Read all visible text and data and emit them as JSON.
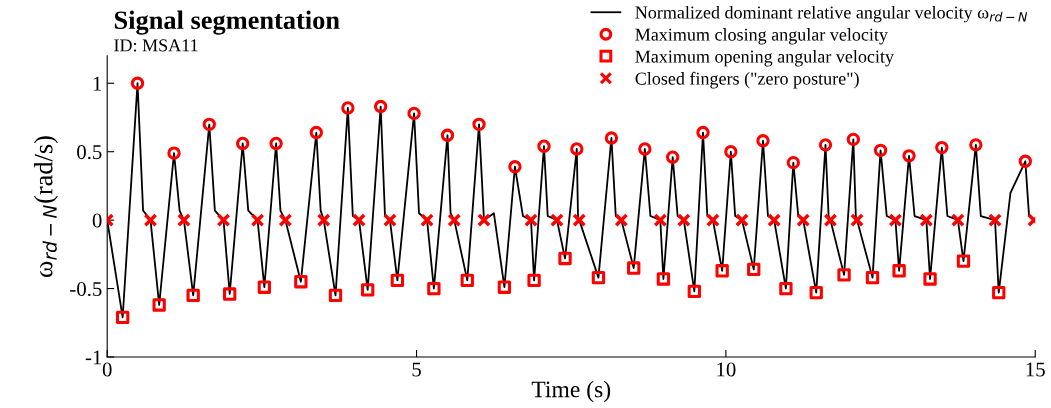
{
  "chart_data": {
    "type": "line",
    "title": "Signal segmentation",
    "subtitle": "ID: MSA11",
    "xlabel": "Time (s)",
    "ylabel": "ω$_{rd−N}$(rad/s)",
    "xlim": [
      0,
      15
    ],
    "ylim": [
      -1,
      1.2
    ],
    "xticks": [
      0,
      5,
      10,
      15
    ],
    "yticks": [
      -1,
      -0.5,
      0,
      0.5,
      1
    ],
    "grid": false,
    "legend": "top right",
    "series": [
      {
        "name": "Normalized dominant relative angular velocity ω$_{rd−N}$",
        "type": "line",
        "color": "#000000",
        "marker": "none",
        "line_style": "solid",
        "x": [
          0.0,
          0.25,
          0.49,
          0.58,
          0.7,
          0.84,
          1.08,
          1.17,
          1.24,
          1.39,
          1.65,
          1.74,
          1.88,
          1.98,
          2.19,
          2.28,
          2.43,
          2.54,
          2.73,
          2.8,
          2.88,
          3.13,
          3.38,
          3.45,
          3.5,
          3.69,
          3.89,
          3.97,
          4.07,
          4.21,
          4.42,
          4.49,
          4.57,
          4.69,
          4.96,
          5.04,
          5.17,
          5.28,
          5.5,
          5.55,
          5.61,
          5.82,
          6.01,
          6.09,
          6.25,
          6.42,
          6.59,
          6.72,
          6.85,
          6.9,
          7.06,
          7.12,
          7.27,
          7.4,
          7.59,
          7.61,
          7.63,
          7.94,
          8.15,
          8.22,
          8.31,
          8.51,
          8.69,
          8.78,
          8.94,
          8.99,
          9.14,
          9.22,
          9.32,
          9.49,
          9.63,
          9.7,
          9.79,
          9.94,
          10.08,
          10.15,
          10.26,
          10.45,
          10.6,
          10.68,
          10.78,
          10.97,
          11.09,
          11.17,
          11.25,
          11.46,
          11.61,
          11.66,
          11.69,
          11.91,
          12.06,
          12.1,
          12.12,
          12.37,
          12.5,
          12.6,
          12.74,
          12.8,
          12.96,
          13.05,
          13.24,
          13.3,
          13.49,
          13.58,
          13.75,
          13.84,
          14.04,
          14.12,
          14.35,
          14.41,
          14.6,
          14.84,
          14.9
        ],
        "values": [
          0,
          -0.71,
          1.0,
          0.07,
          0,
          -0.62,
          0.49,
          0.07,
          0,
          -0.55,
          0.7,
          0.07,
          0,
          -0.54,
          0.56,
          0.07,
          0,
          -0.49,
          0.56,
          0.07,
          0,
          -0.45,
          0.64,
          0.07,
          0,
          -0.55,
          0.82,
          0.03,
          0,
          -0.51,
          0.83,
          0.03,
          0,
          -0.44,
          0.78,
          0.05,
          0,
          -0.5,
          0.62,
          0.05,
          0,
          -0.44,
          0.7,
          0,
          0.05,
          -0.49,
          0.39,
          0.03,
          0,
          -0.44,
          0.54,
          0.03,
          0,
          -0.28,
          0.52,
          0.02,
          0,
          -0.42,
          0.6,
          0.03,
          0,
          -0.35,
          0.52,
          0.03,
          0,
          -0.43,
          0.46,
          0.03,
          0,
          -0.52,
          0.64,
          0.03,
          0,
          -0.37,
          0.5,
          0.03,
          0,
          -0.36,
          0.58,
          0.03,
          0,
          -0.5,
          0.42,
          0.03,
          0,
          -0.53,
          0.55,
          0.03,
          0,
          -0.4,
          0.59,
          0.03,
          0,
          -0.42,
          0.51,
          0.03,
          0,
          -0.37,
          0.47,
          0.03,
          0,
          -0.43,
          0.53,
          0.03,
          0,
          -0.3,
          0.55,
          0.03,
          0,
          -0.53,
          0.2,
          0.43,
          0.03
        ]
      },
      {
        "name": "Maximum closing angular velocity",
        "type": "scatter",
        "color": "#ff0000",
        "marker": "circle",
        "x": [
          0.49,
          1.08,
          1.65,
          2.19,
          2.73,
          3.38,
          3.89,
          4.42,
          4.96,
          5.5,
          6.01,
          6.59,
          7.06,
          7.59,
          8.15,
          8.69,
          9.14,
          9.63,
          10.08,
          10.6,
          11.09,
          11.61,
          12.06,
          12.5,
          12.96,
          13.49,
          14.04,
          14.84
        ],
        "values": [
          1.0,
          0.49,
          0.7,
          0.56,
          0.56,
          0.64,
          0.82,
          0.83,
          0.78,
          0.62,
          0.7,
          0.39,
          0.54,
          0.52,
          0.6,
          0.52,
          0.46,
          0.64,
          0.5,
          0.58,
          0.42,
          0.55,
          0.59,
          0.51,
          0.47,
          0.53,
          0.55,
          0.43
        ]
      },
      {
        "name": "Maximum opening angular velocity",
        "type": "scatter",
        "color": "#ff0000",
        "marker": "square",
        "x": [
          0.25,
          0.84,
          1.39,
          1.98,
          2.54,
          3.13,
          3.69,
          4.21,
          4.69,
          5.28,
          5.82,
          6.42,
          6.9,
          7.4,
          7.94,
          8.51,
          8.99,
          9.49,
          9.94,
          10.45,
          10.97,
          11.46,
          11.91,
          12.37,
          12.8,
          13.3,
          13.84,
          14.41
        ],
        "values": [
          -0.71,
          -0.62,
          -0.55,
          -0.54,
          -0.49,
          -0.45,
          -0.55,
          -0.51,
          -0.44,
          -0.5,
          -0.44,
          -0.49,
          -0.44,
          -0.28,
          -0.42,
          -0.35,
          -0.43,
          -0.52,
          -0.37,
          -0.36,
          -0.5,
          -0.53,
          -0.4,
          -0.42,
          -0.37,
          -0.43,
          -0.3,
          -0.53
        ]
      },
      {
        "name": "Closed fingers (\"zero posture\")",
        "type": "scatter",
        "color": "#ff0000",
        "marker": "cross",
        "x": [
          0.0,
          0.7,
          1.24,
          1.88,
          2.43,
          2.88,
          3.5,
          4.07,
          4.57,
          5.17,
          5.61,
          6.09,
          6.85,
          7.27,
          7.63,
          8.31,
          8.94,
          9.32,
          9.79,
          10.26,
          10.78,
          11.25,
          11.69,
          12.12,
          12.74,
          13.24,
          13.75,
          14.35,
          14.98
        ],
        "values": [
          0,
          0,
          0,
          0,
          0,
          0,
          0,
          0,
          0,
          0,
          0,
          0,
          0,
          0,
          0,
          0,
          0,
          0,
          0,
          0,
          0,
          0,
          0,
          0,
          0,
          0,
          0,
          0,
          0
        ]
      }
    ]
  }
}
